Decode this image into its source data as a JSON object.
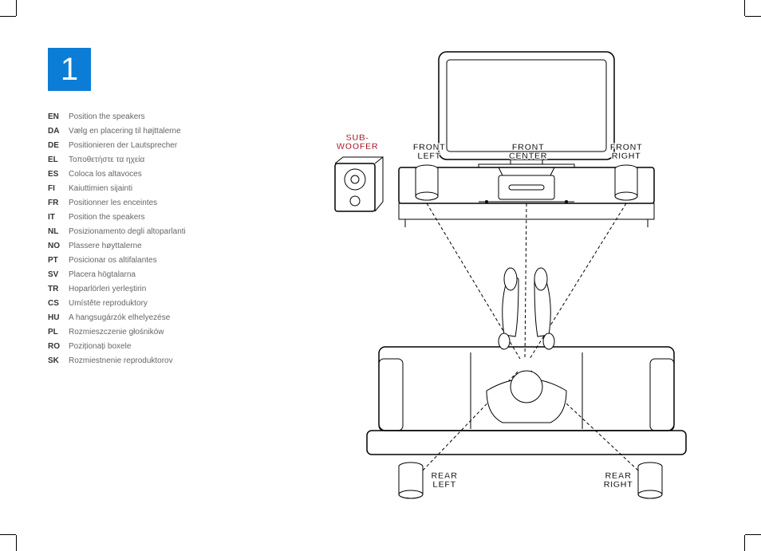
{
  "step_number": "1",
  "languages": [
    {
      "code": "EN",
      "text": "Position the speakers"
    },
    {
      "code": "DA",
      "text": "Vælg en placering til højttalerne"
    },
    {
      "code": "DE",
      "text": "Positionieren der Lautsprecher"
    },
    {
      "code": "EL",
      "text": "Τοποθετήστε τα ηχεία"
    },
    {
      "code": "ES",
      "text": "Coloca los altavoces"
    },
    {
      "code": "FI",
      "text": "Kaiuttimien sijainti"
    },
    {
      "code": "FR",
      "text": "Positionner les enceintes"
    },
    {
      "code": "IT",
      "text": "Position the speakers"
    },
    {
      "code": "NL",
      "text": "Posizionamento degli altoparlanti"
    },
    {
      "code": "NO",
      "text": "Plassere høyttalerne"
    },
    {
      "code": "PT",
      "text": "Posicionar os altifalantes"
    },
    {
      "code": "SV",
      "text": "Placera högtalarna"
    },
    {
      "code": "TR",
      "text": "Hoparlörleri yerleştirin"
    },
    {
      "code": "CS",
      "text": "Umístěte reproduktory"
    },
    {
      "code": "HU",
      "text": "A hangsugárzók elhelyezése"
    },
    {
      "code": "PL",
      "text": "Rozmieszczenie głośników"
    },
    {
      "code": "RO",
      "text": "Poziționați boxele"
    },
    {
      "code": "SK",
      "text": "Rozmiestnenie reproduktorov"
    }
  ],
  "labels": {
    "subwoofer": "SUB-\nWOOFER",
    "front_left": "FRONT\nLEFT",
    "front_center": "FRONT\nCENTER",
    "front_right": "FRONT\nRIGHT",
    "rear_left": "REAR\nLEFT",
    "rear_right": "REAR\nRIGHT"
  },
  "colors": {
    "accent": "#0b7dd6",
    "sub_label": "#a01020",
    "text": "#555555",
    "background": "#ffffff"
  },
  "diagram": {
    "type": "infographic",
    "description": "5.1 speaker placement: TV with front L/C/R speakers on a console, subwoofer to the left, listener on couch, rear L/R speakers behind, dashed sight/sound lines converging on listener."
  }
}
